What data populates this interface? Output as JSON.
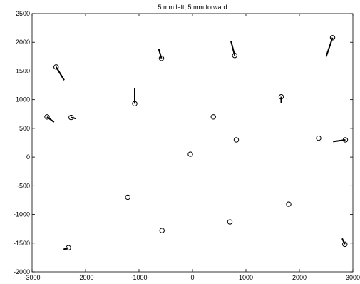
{
  "chart_data": {
    "type": "scatter",
    "title": "5 mm left, 5 mm forward",
    "xlabel": "",
    "ylabel": "",
    "xlim": [
      -3000,
      3000
    ],
    "ylim": [
      -2000,
      2500
    ],
    "xticks": [
      -3000,
      -2000,
      -1000,
      0,
      1000,
      2000,
      3000
    ],
    "yticks": [
      -2000,
      -1500,
      -1000,
      -500,
      0,
      500,
      1000,
      1500,
      2000,
      2500
    ],
    "grid": false,
    "legend": "none",
    "series": [
      {
        "marker": "circle",
        "points": [
          {
            "x": -2550,
            "y": 1570,
            "dx": 150,
            "dy": -230
          },
          {
            "x": -2720,
            "y": 700,
            "dx": 130,
            "dy": -90
          },
          {
            "x": -2270,
            "y": 690,
            "dx": 90,
            "dy": -20
          },
          {
            "x": -1080,
            "y": 930,
            "dx": 0,
            "dy": 270
          },
          {
            "x": -580,
            "y": 1720,
            "dx": -50,
            "dy": 160
          },
          {
            "x": 790,
            "y": 1770,
            "dx": -70,
            "dy": 250
          },
          {
            "x": 2620,
            "y": 2080,
            "dx": -120,
            "dy": -330
          },
          {
            "x": 1660,
            "y": 1050,
            "dx": 0,
            "dy": -110
          },
          {
            "x": 390,
            "y": 700,
            "dx": 0,
            "dy": 0
          },
          {
            "x": 820,
            "y": 300,
            "dx": 0,
            "dy": 0
          },
          {
            "x": 2360,
            "y": 330,
            "dx": 0,
            "dy": 0
          },
          {
            "x": 2860,
            "y": 300,
            "dx": -230,
            "dy": -30
          },
          {
            "x": -40,
            "y": 50,
            "dx": 0,
            "dy": 0
          },
          {
            "x": -1210,
            "y": -700,
            "dx": 0,
            "dy": 0
          },
          {
            "x": -570,
            "y": -1280,
            "dx": 0,
            "dy": 0
          },
          {
            "x": 700,
            "y": -1130,
            "dx": 0,
            "dy": 0
          },
          {
            "x": 1800,
            "y": -820,
            "dx": 0,
            "dy": 0
          },
          {
            "x": -2320,
            "y": -1580,
            "dx": -90,
            "dy": -30
          },
          {
            "x": 2850,
            "y": -1520,
            "dx": -50,
            "dy": 100
          }
        ]
      }
    ]
  }
}
